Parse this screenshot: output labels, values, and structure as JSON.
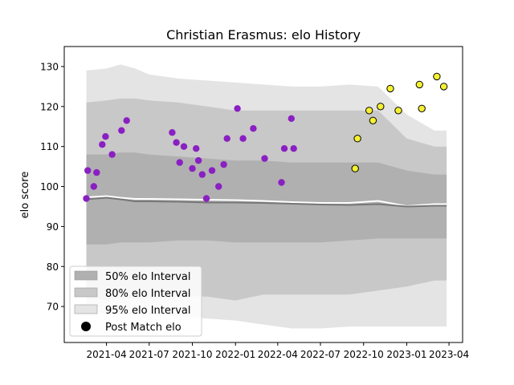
{
  "chart_data": {
    "type": "scatter",
    "title": "Christian Erasmus: elo History",
    "xlabel": "",
    "ylabel": "elo score",
    "xlim": [
      "2021-01-01",
      "2023-04-30"
    ],
    "ylim": [
      61,
      135
    ],
    "grid": false,
    "legend_position": "lower-left",
    "x_ticks": [
      "2021-04-01",
      "2021-07-01",
      "2021-10-01",
      "2022-01-01",
      "2022-04-01",
      "2022-07-01",
      "2022-10-01",
      "2023-01-01",
      "2023-04-01"
    ],
    "x_tick_labels": [
      "2021-04",
      "2021-07",
      "2021-10",
      "2022-01",
      "2022-04",
      "2022-07",
      "2022-10",
      "2023-01",
      "2023-04"
    ],
    "y_ticks": [
      70,
      80,
      90,
      100,
      110,
      120,
      130
    ],
    "legend": [
      {
        "key": "band50",
        "label": "50% elo Interval",
        "color": "#b0b0b0"
      },
      {
        "key": "band80",
        "label": "80% elo Interval",
        "color": "#c8c8c8"
      },
      {
        "key": "band95",
        "label": "95% elo Interval",
        "color": "#e4e4e4"
      },
      {
        "key": "points",
        "label": "Post Match elo",
        "color": "#000000"
      }
    ],
    "bands": {
      "x": [
        "2021-02-17",
        "2021-04-01",
        "2021-05-01",
        "2021-06-01",
        "2021-07-01",
        "2021-09-01",
        "2021-11-01",
        "2022-01-01",
        "2022-03-01",
        "2022-05-01",
        "2022-07-01",
        "2022-09-01",
        "2022-11-01",
        "2023-01-01",
        "2023-03-01",
        "2023-03-27"
      ],
      "p95_upper": [
        129,
        129.5,
        130.5,
        129.5,
        128,
        127,
        126.5,
        126,
        125.5,
        125,
        125,
        125.5,
        125,
        118,
        114,
        114
      ],
      "p80_upper": [
        121,
        121.5,
        122,
        122,
        121.5,
        121,
        120,
        119,
        119,
        119,
        119,
        119,
        119,
        112,
        110,
        110
      ],
      "p50_upper": [
        108,
        108,
        108.5,
        108.5,
        108,
        107.5,
        107,
        106.5,
        106.5,
        106,
        106,
        106,
        106,
        104,
        103,
        103
      ],
      "p50_lower": [
        85.5,
        85.5,
        86,
        86,
        86,
        86.5,
        86.5,
        86,
        86,
        86,
        86,
        86.5,
        87,
        87,
        87,
        87
      ],
      "p80_lower": [
        72,
        71.5,
        72,
        72,
        72,
        72.5,
        72.5,
        71.5,
        73,
        73,
        73,
        73,
        74,
        75,
        76.5,
        76.5
      ],
      "p95_lower": [
        69.5,
        68,
        68,
        68,
        68,
        67.5,
        67,
        66.5,
        65.5,
        64.5,
        64.5,
        65,
        65,
        65,
        65,
        65
      ],
      "mean": [
        96.8,
        97.2,
        96.8,
        96.3,
        96.3,
        96.2,
        96.0,
        96.0,
        95.9,
        95.7,
        95.5,
        95.4,
        95.6,
        95.0,
        95.2,
        95.2
      ],
      "median": [
        97.3,
        97.6,
        97.2,
        96.9,
        96.9,
        96.8,
        96.7,
        96.6,
        96.4,
        96.1,
        95.9,
        95.9,
        96.4,
        95.1,
        95.6,
        95.6
      ]
    },
    "series": [
      {
        "color": "#8a1fc2",
        "x": [
          "2021-02-17",
          "2021-02-20",
          "2021-03-05",
          "2021-03-11",
          "2021-03-23",
          "2021-03-30",
          "2021-04-13",
          "2021-05-03",
          "2021-05-14",
          "2021-08-19",
          "2021-08-28",
          "2021-09-04",
          "2021-09-13",
          "2021-10-01",
          "2021-10-09",
          "2021-10-14",
          "2021-10-22",
          "2021-10-31",
          "2021-11-12",
          "2021-11-26",
          "2021-12-07",
          "2021-12-14",
          "2022-01-05",
          "2022-01-17",
          "2022-02-08",
          "2022-03-04",
          "2022-04-09",
          "2022-04-15",
          "2022-04-30",
          "2022-05-05"
        ],
        "y": [
          97,
          104,
          100,
          103.5,
          110.5,
          112.5,
          108,
          114,
          116.5,
          113.5,
          111,
          106,
          110,
          104.5,
          109.5,
          106.5,
          103,
          97,
          104,
          100,
          105.5,
          112,
          119.5,
          112,
          114.5,
          107,
          101,
          109.5,
          117,
          109.5
        ]
      },
      {
        "color": "#f5f032",
        "x": [
          "2022-09-13",
          "2022-09-18",
          "2022-10-13",
          "2022-10-21",
          "2022-11-06",
          "2022-11-27",
          "2022-12-14",
          "2023-01-28",
          "2023-02-02",
          "2023-03-06",
          "2023-03-21"
        ],
        "y": [
          104.5,
          112,
          119,
          116.5,
          120,
          124.5,
          119,
          125.5,
          119.5,
          127.5,
          125
        ]
      }
    ]
  }
}
